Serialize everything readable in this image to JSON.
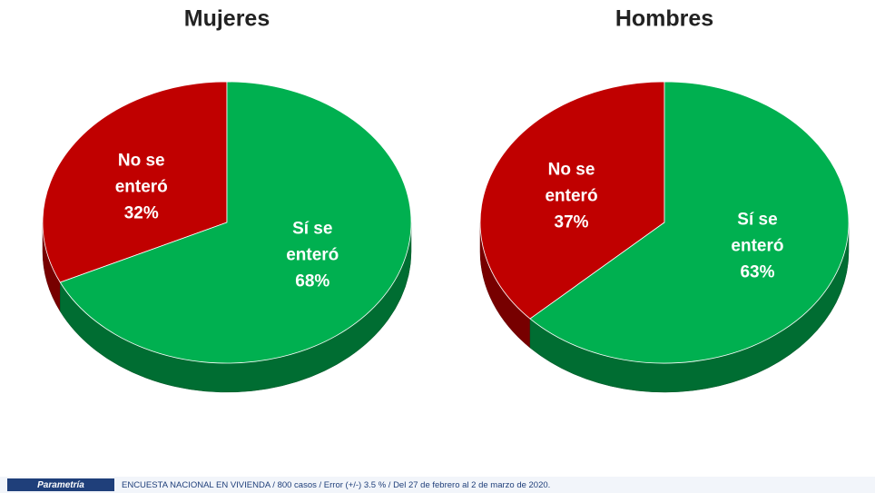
{
  "chart_data": [
    {
      "type": "pie",
      "title": "Mujeres",
      "categories": [
        "No se enteró",
        "Sí se enteró"
      ],
      "values": [
        32,
        68
      ],
      "value_labels": [
        "32%",
        "68%"
      ],
      "colors": [
        "#c00000",
        "#00b050"
      ]
    },
    {
      "type": "pie",
      "title": "Hombres",
      "categories": [
        "No se enteró",
        "Sí se enteró"
      ],
      "values": [
        37,
        63
      ],
      "value_labels": [
        "37%",
        "63%"
      ],
      "colors": [
        "#c00000",
        "#00b050"
      ]
    }
  ],
  "footer": {
    "logo": "Parametría",
    "source": "ENCUESTA  NACIONAL EN VIVIENDA  / 800 casos / Error (+/-)  3.5 % / Del  27 de febrero al 2 de marzo de 2020."
  }
}
